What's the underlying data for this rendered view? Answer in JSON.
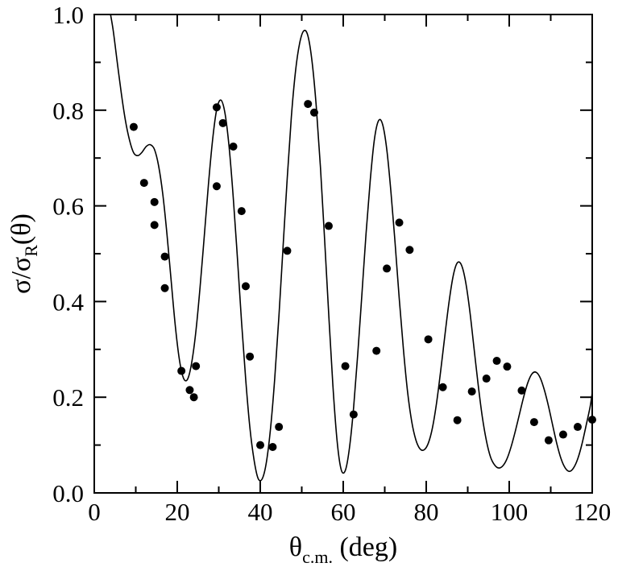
{
  "chart_data": {
    "type": "scatter",
    "xlim": [
      0,
      120
    ],
    "ylim": [
      0.0,
      1.0
    ],
    "x_ticks": [
      0,
      20,
      40,
      60,
      80,
      100,
      120
    ],
    "x_tick_labels": [
      "0",
      "20",
      "40",
      "60",
      "80",
      "100",
      "120"
    ],
    "y_ticks": [
      0.0,
      0.2,
      0.4,
      0.6,
      0.8,
      1.0
    ],
    "y_tick_labels": [
      "0.0",
      "0.2",
      "0.4",
      "0.6",
      "0.8",
      "1.0"
    ],
    "xlabel": {
      "main": "θ",
      "sub": "c.m.",
      "rest": " (deg)"
    },
    "ylabel": {
      "p1": "σ/σ",
      "sub": "R",
      "p2": "(θ)"
    },
    "grid": false,
    "series": [
      {
        "kind": "line",
        "color": "#000000",
        "x": [
          3.5,
          4.5,
          5.5,
          6.5,
          7.5,
          8.5,
          9.5,
          10.5,
          11.5,
          12.5,
          13.5,
          14.5,
          15.5,
          16.5,
          17.5,
          18.5,
          19.5,
          20.5,
          21.5,
          22.5,
          23.5,
          24.5,
          25.5,
          26.5,
          27.5,
          28.5,
          29.5,
          30.5,
          31.5,
          32.5,
          33.5,
          34.5,
          35.5,
          36.5,
          37.5,
          38.5,
          39.5,
          40.5,
          41.5,
          42.5,
          43.5,
          44.5,
          45.5,
          46.5,
          47.5,
          48.5,
          49.5,
          50.5,
          51.5,
          52.5,
          53.5,
          54.5,
          55.5,
          56.5,
          57.5,
          58.5,
          59.5,
          60.5,
          61.5,
          62.5,
          63.5,
          64.5,
          65.5,
          66.5,
          67.5,
          68.5,
          69.5,
          70.5,
          71.5,
          72.5,
          73.5,
          74.5,
          75.5,
          76.5,
          77.5,
          78.5,
          79.5,
          80.5,
          81.5,
          82.5,
          83.5,
          84.5,
          85.5,
          86.5,
          87.5,
          88.5,
          89.5,
          90.5,
          91.5,
          92.5,
          93.5,
          94.5,
          95.5,
          96.5,
          97.5,
          98.5,
          99.5,
          100.5,
          101.5,
          102.5,
          103.5,
          104.5,
          105.5,
          106.5,
          107.5,
          108.5,
          109.5,
          110.5,
          111.5,
          112.5,
          113.5,
          114.5,
          115.5,
          116.5,
          117.5,
          118.5,
          119.5,
          120
        ],
        "y": [
          1.02,
          0.97,
          0.903,
          0.836,
          0.779,
          0.737,
          0.711,
          0.705,
          0.712,
          0.724,
          0.728,
          0.718,
          0.684,
          0.625,
          0.543,
          0.446,
          0.352,
          0.279,
          0.24,
          0.238,
          0.273,
          0.339,
          0.43,
          0.536,
          0.643,
          0.737,
          0.801,
          0.821,
          0.794,
          0.722,
          0.617,
          0.49,
          0.357,
          0.236,
          0.137,
          0.069,
          0.03,
          0.03,
          0.065,
          0.137,
          0.24,
          0.37,
          0.514,
          0.658,
          0.786,
          0.882,
          0.94,
          0.966,
          0.955,
          0.9,
          0.808,
          0.681,
          0.532,
          0.373,
          0.226,
          0.11,
          0.049,
          0.047,
          0.094,
          0.179,
          0.29,
          0.416,
          0.542,
          0.653,
          0.738,
          0.778,
          0.77,
          0.717,
          0.629,
          0.521,
          0.406,
          0.3,
          0.212,
          0.149,
          0.111,
          0.092,
          0.09,
          0.104,
          0.136,
          0.189,
          0.256,
          0.33,
          0.399,
          0.454,
          0.481,
          0.476,
          0.441,
          0.38,
          0.304,
          0.227,
          0.16,
          0.109,
          0.075,
          0.058,
          0.052,
          0.057,
          0.072,
          0.098,
          0.13,
          0.166,
          0.201,
          0.231,
          0.249,
          0.252,
          0.24,
          0.214,
          0.18,
          0.14,
          0.102,
          0.071,
          0.052,
          0.045,
          0.052,
          0.071,
          0.101,
          0.14,
          0.18,
          0.21
        ]
      },
      {
        "kind": "points",
        "color": "#000000",
        "x": [
          9.5,
          12,
          14.5,
          14.5,
          17,
          17,
          21,
          23,
          24,
          24.5,
          29.5,
          29.5,
          31,
          33.5,
          35.5,
          36.5,
          37.5,
          40,
          43,
          44.5,
          46.5,
          51.5,
          53,
          56.5,
          60.5,
          62.5,
          68,
          70.5,
          73.5,
          76,
          80.5,
          84,
          87.5,
          91,
          94.5,
          97,
          99.5,
          103,
          106,
          109.5,
          113,
          116.5,
          120
        ],
        "y": [
          0.765,
          0.648,
          0.608,
          0.56,
          0.494,
          0.428,
          0.255,
          0.215,
          0.2,
          0.265,
          0.806,
          0.641,
          0.773,
          0.724,
          0.589,
          0.432,
          0.285,
          0.1,
          0.096,
          0.138,
          0.506,
          0.813,
          0.795,
          0.558,
          0.265,
          0.164,
          0.297,
          0.469,
          0.565,
          0.508,
          0.321,
          0.221,
          0.152,
          0.212,
          0.239,
          0.276,
          0.264,
          0.214,
          0.148,
          0.11,
          0.122,
          0.138,
          0.153
        ]
      }
    ]
  }
}
